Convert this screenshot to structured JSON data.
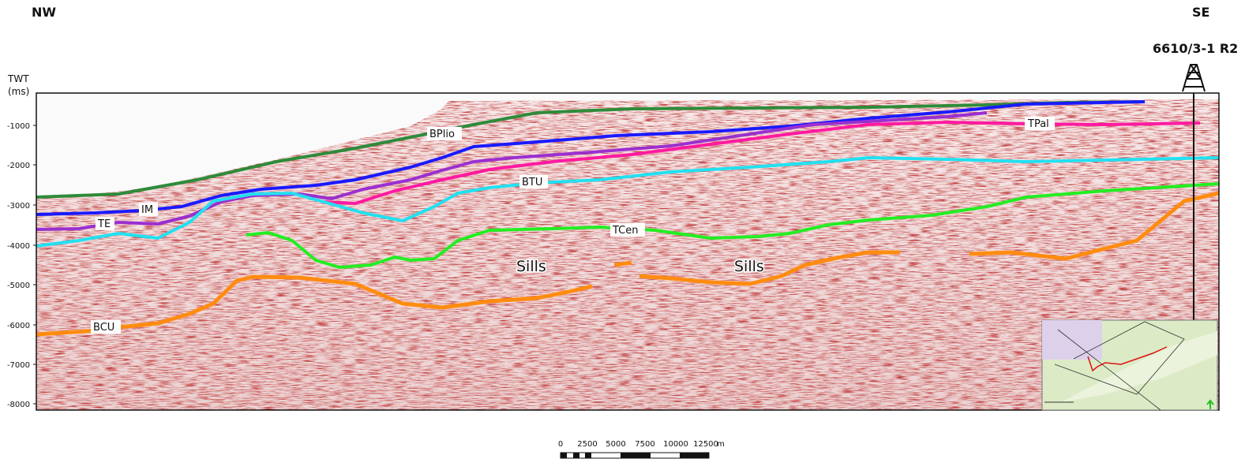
{
  "header": {
    "left_direction": "NW",
    "right_direction": "SE",
    "well_name": "6610/3-1 R2"
  },
  "axis": {
    "title_line1": "TWT",
    "title_line2": "(ms)",
    "ticks": [
      "-1000",
      "-2000",
      "-3000",
      "-4000",
      "-5000",
      "-6000",
      "-7000",
      "-8000"
    ]
  },
  "horizons": [
    {
      "id": "BPlio",
      "label": "BPlio",
      "color": "#2e8b3a"
    },
    {
      "id": "TPal",
      "label": "TPal",
      "color": "#ff1aa0"
    },
    {
      "id": "IM",
      "label": "IM",
      "color": "#1a1aff"
    },
    {
      "id": "TE",
      "label": "TE",
      "color": "#9b2fd0"
    },
    {
      "id": "BTU",
      "label": "BTU",
      "color": "#22e0f0"
    },
    {
      "id": "TCen",
      "label": "TCen",
      "color": "#22ee22"
    },
    {
      "id": "BCU",
      "label": "BCU",
      "color": "#ff8c10"
    }
  ],
  "annotations": [
    "Sills",
    "Sills"
  ],
  "scale_bar": {
    "ticks": [
      "0",
      "2500",
      "5000",
      "7500",
      "10000",
      "12500"
    ],
    "unit": "m"
  },
  "icons": {
    "well": "derrick-icon",
    "north": "north-arrow-icon"
  }
}
